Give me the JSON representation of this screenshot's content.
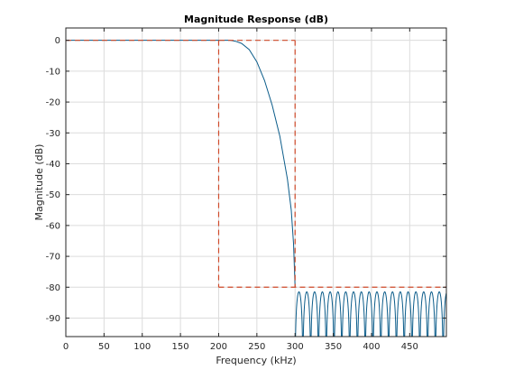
{
  "chart_data": {
    "type": "line",
    "title": "Magnitude Response (dB)",
    "xlabel": "Frequency (kHz)",
    "ylabel": "Magnitude (dB)",
    "xlim": [
      0,
      498
    ],
    "ylim": [
      -96,
      4
    ],
    "grid": true,
    "x_ticks": [
      0,
      50,
      100,
      150,
      200,
      250,
      300,
      350,
      400,
      450
    ],
    "y_ticks": [
      0,
      -10,
      -20,
      -30,
      -40,
      -50,
      -60,
      -70,
      -80,
      -90
    ],
    "colors": {
      "response": "#0b5c8a",
      "mask": "#d04a2a",
      "grid": "#dcdcdc",
      "axes": "#262626"
    },
    "series": [
      {
        "role": "response",
        "passband": {
          "x": [
            0,
            215
          ],
          "y": 0
        },
        "transition": {
          "x": [
            215,
            222,
            230,
            240,
            250,
            260,
            270,
            280,
            290,
            295,
            298,
            300
          ],
          "y": [
            0,
            -0.3,
            -1,
            -3,
            -7,
            -13,
            -21,
            -31,
            -45,
            -55,
            -66,
            -80
          ]
        },
        "stopband": {
          "x_start": 300,
          "x_end": 498,
          "lobe_width": 10.2,
          "lobe_peak": -81.5,
          "floor": -96
        }
      },
      {
        "role": "mask",
        "style": "dashed",
        "segments": [
          {
            "x": [
              0,
              300
            ],
            "y": [
              0,
              0
            ]
          },
          {
            "x": [
              300,
              300
            ],
            "y": [
              0,
              -80
            ]
          },
          {
            "x": [
              200,
              200
            ],
            "y": [
              0,
              -80
            ]
          },
          {
            "x": [
              200,
              498
            ],
            "y": [
              -80,
              -80
            ]
          }
        ]
      }
    ]
  }
}
